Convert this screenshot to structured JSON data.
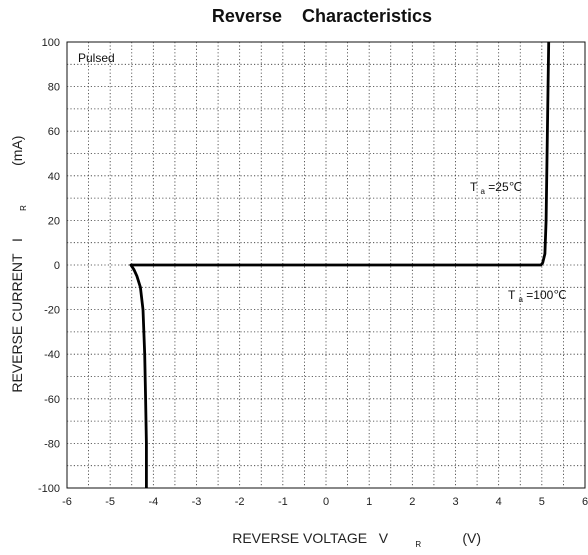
{
  "chart_data": {
    "type": "line",
    "title": "Reverse    Characteristics",
    "xlabel": {
      "main": "REVERSE VOLTAGE   V",
      "subscript": "R",
      "unit": "(V)"
    },
    "ylabel": {
      "main": "REVERSE CURRENT   I",
      "subscript": "R",
      "unit": "(mA)"
    },
    "xlim": [
      -6,
      6
    ],
    "ylim": [
      -100,
      100
    ],
    "x_ticks": [
      -6,
      -5,
      -4,
      -3,
      -2,
      -1,
      0,
      1,
      2,
      3,
      4,
      5,
      6
    ],
    "y_ticks": [
      -100,
      -80,
      -60,
      -40,
      -20,
      0,
      20,
      40,
      60,
      80,
      100
    ],
    "grid": "dotted",
    "annotations": [
      {
        "text": "Pulsed"
      },
      {
        "text": "T",
        "subscript": "a",
        "suffix": "=25℃"
      },
      {
        "text": "T",
        "subscript": "a",
        "suffix": "=100℃"
      }
    ],
    "series": [
      {
        "points": [
          [
            -4.16,
            -100
          ],
          [
            -4.16,
            -80
          ],
          [
            -4.18,
            -60
          ],
          [
            -4.2,
            -40
          ],
          [
            -4.24,
            -20
          ],
          [
            -4.3,
            -10
          ],
          [
            -4.38,
            -5
          ],
          [
            -4.45,
            -2
          ],
          [
            -4.52,
            0
          ],
          [
            -4.45,
            0
          ],
          [
            4.98,
            0
          ],
          [
            5.02,
            1
          ],
          [
            5.07,
            5
          ],
          [
            5.1,
            20
          ],
          [
            5.13,
            60
          ],
          [
            5.16,
            100
          ]
        ]
      }
    ]
  }
}
